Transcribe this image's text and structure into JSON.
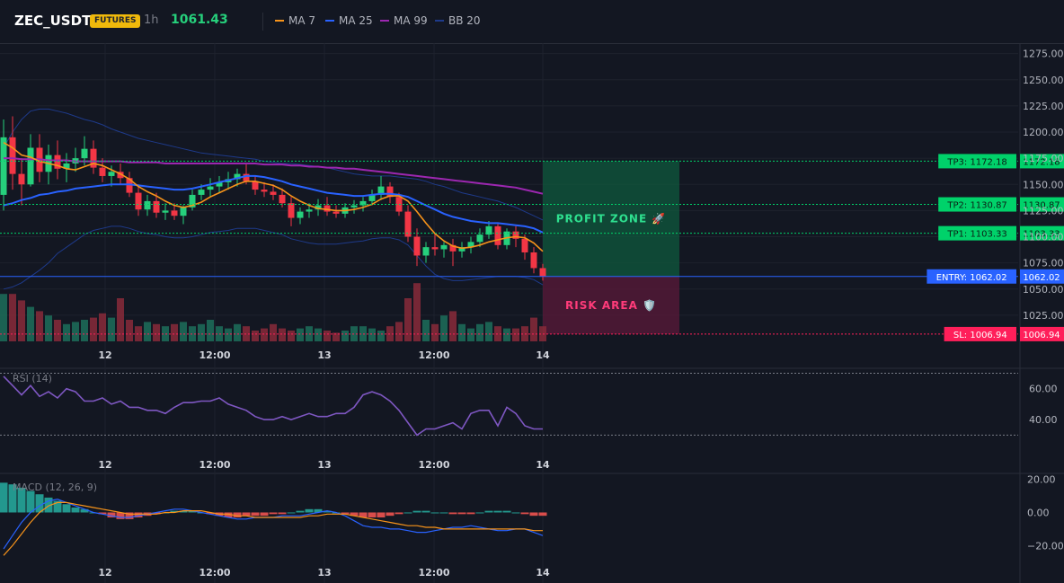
{
  "header": {
    "symbol": "ZEC_USDT",
    "badge": "FUTURES",
    "timeframe": "1h",
    "price": "1061.43"
  },
  "legend": [
    {
      "label": "MA 7",
      "color": "#f7931a"
    },
    {
      "label": "MA 25",
      "color": "#2962ff"
    },
    {
      "label": "MA 99",
      "color": "#9c27b0"
    },
    {
      "label": "BB 20",
      "color": "#1e3a8a"
    }
  ],
  "colors": {
    "up": "#26d07c",
    "down": "#f23645",
    "tp": "#00d26a",
    "sl": "#ff1f5a",
    "entry": "#2962ff",
    "rsi": "#7e57c2",
    "macd": "#2962ff",
    "signal": "#f7931a"
  },
  "main_axis": {
    "ticks": [
      "1275.00",
      "1250.00",
      "1225.00",
      "1200.00",
      "1175.00",
      "1150.00",
      "1125.00",
      "1100.00",
      "1075.00",
      "1050.00",
      "1025.00"
    ],
    "values": [
      1275,
      1250,
      1225,
      1200,
      1175,
      1150,
      1125,
      1100,
      1075,
      1050,
      1025
    ]
  },
  "x_ticks": [
    "12",
    "12:00",
    "13",
    "12:00",
    "14"
  ],
  "levels": {
    "tp3": {
      "label": "TP3: 1172.18",
      "axis": "1172.18",
      "value": 1172.18
    },
    "tp2": {
      "label": "TP2: 1130.87",
      "axis": "1130.87",
      "value": 1130.87
    },
    "tp1": {
      "label": "TP1: 1103.33",
      "axis": "1103.33",
      "value": 1103.33
    },
    "entry": {
      "label": "ENTRY: 1062.02",
      "axis": "1062.02",
      "value": 1062.02
    },
    "sl": {
      "label": "SL: 1006.94",
      "axis": "1006.94",
      "value": 1006.94
    }
  },
  "zones": {
    "profit": "PROFIT ZONE 🚀",
    "risk": "RISK AREA 🛡️"
  },
  "rsi": {
    "title": "RSI (14)",
    "ticks": [
      "60.00",
      "40.00"
    ],
    "tick_values": [
      60,
      40
    ],
    "overbought": 70,
    "oversold": 30
  },
  "macd": {
    "title": "MACD (12, 26, 9)",
    "ticks": [
      "20.00",
      "0.00",
      "−20.00"
    ],
    "tick_values": [
      20,
      0,
      -20
    ]
  },
  "chart_data": {
    "type": "candlestick",
    "ylim": [
      1000,
      1285
    ],
    "candles": [
      [
        1140,
        1212,
        1125,
        1195
      ],
      [
        1195,
        1215,
        1145,
        1160
      ],
      [
        1160,
        1175,
        1130,
        1150
      ],
      [
        1150,
        1198,
        1148,
        1185
      ],
      [
        1185,
        1198,
        1152,
        1162
      ],
      [
        1162,
        1188,
        1150,
        1178
      ],
      [
        1178,
        1192,
        1155,
        1165
      ],
      [
        1165,
        1180,
        1152,
        1170
      ],
      [
        1170,
        1185,
        1162,
        1175
      ],
      [
        1175,
        1196,
        1168,
        1184
      ],
      [
        1184,
        1192,
        1160,
        1166
      ],
      [
        1166,
        1175,
        1152,
        1158
      ],
      [
        1158,
        1168,
        1148,
        1162
      ],
      [
        1162,
        1170,
        1150,
        1156
      ],
      [
        1156,
        1162,
        1138,
        1142
      ],
      [
        1142,
        1150,
        1120,
        1126
      ],
      [
        1126,
        1140,
        1120,
        1134
      ],
      [
        1134,
        1142,
        1118,
        1123
      ],
      [
        1123,
        1132,
        1116,
        1125
      ],
      [
        1125,
        1132,
        1116,
        1120
      ],
      [
        1120,
        1130,
        1112,
        1128
      ],
      [
        1128,
        1145,
        1125,
        1140
      ],
      [
        1140,
        1150,
        1135,
        1145
      ],
      [
        1145,
        1156,
        1138,
        1148
      ],
      [
        1148,
        1158,
        1142,
        1152
      ],
      [
        1152,
        1162,
        1145,
        1155
      ],
      [
        1155,
        1165,
        1148,
        1160
      ],
      [
        1160,
        1170,
        1150,
        1153
      ],
      [
        1153,
        1158,
        1140,
        1145
      ],
      [
        1145,
        1152,
        1138,
        1143
      ],
      [
        1143,
        1150,
        1135,
        1140
      ],
      [
        1140,
        1146,
        1128,
        1132
      ],
      [
        1132,
        1138,
        1110,
        1118
      ],
      [
        1118,
        1128,
        1112,
        1124
      ],
      [
        1124,
        1132,
        1118,
        1126
      ],
      [
        1126,
        1136,
        1120,
        1130
      ],
      [
        1130,
        1138,
        1120,
        1124
      ],
      [
        1124,
        1130,
        1118,
        1122
      ],
      [
        1122,
        1132,
        1118,
        1128
      ],
      [
        1128,
        1135,
        1122,
        1130
      ],
      [
        1130,
        1138,
        1124,
        1134
      ],
      [
        1134,
        1145,
        1130,
        1140
      ],
      [
        1140,
        1158,
        1135,
        1148
      ],
      [
        1148,
        1152,
        1132,
        1138
      ],
      [
        1138,
        1142,
        1120,
        1124
      ],
      [
        1124,
        1130,
        1095,
        1100
      ],
      [
        1100,
        1108,
        1072,
        1082
      ],
      [
        1082,
        1095,
        1075,
        1090
      ],
      [
        1090,
        1102,
        1082,
        1088
      ],
      [
        1088,
        1095,
        1080,
        1092
      ],
      [
        1092,
        1098,
        1072,
        1086
      ],
      [
        1086,
        1095,
        1080,
        1090
      ],
      [
        1090,
        1100,
        1084,
        1095
      ],
      [
        1095,
        1108,
        1090,
        1102
      ],
      [
        1102,
        1115,
        1098,
        1110
      ],
      [
        1110,
        1112,
        1088,
        1092
      ],
      [
        1092,
        1108,
        1088,
        1105
      ],
      [
        1105,
        1110,
        1090,
        1098
      ],
      [
        1098,
        1102,
        1078,
        1085
      ],
      [
        1085,
        1090,
        1065,
        1070
      ],
      [
        1070,
        1074,
        1058,
        1062
      ]
    ],
    "volume": [
      44,
      44,
      38,
      32,
      28,
      24,
      20,
      16,
      18,
      20,
      22,
      26,
      22,
      40,
      20,
      14,
      18,
      16,
      14,
      16,
      18,
      14,
      16,
      20,
      14,
      12,
      16,
      14,
      10,
      12,
      16,
      12,
      10,
      12,
      14,
      12,
      10,
      8,
      10,
      14,
      14,
      12,
      10,
      14,
      18,
      40,
      54,
      20,
      16,
      24,
      28,
      16,
      12,
      16,
      18,
      14,
      12,
      12,
      14,
      22,
      14
    ],
    "ma7": [
      1190,
      1185,
      1178,
      1176,
      1172,
      1170,
      1168,
      1165,
      1164,
      1167,
      1170,
      1168,
      1164,
      1160,
      1155,
      1148,
      1143,
      1139,
      1134,
      1130,
      1128,
      1130,
      1133,
      1138,
      1142,
      1146,
      1150,
      1153,
      1153,
      1151,
      1149,
      1145,
      1139,
      1134,
      1130,
      1127,
      1126,
      1125,
      1125,
      1126,
      1128,
      1131,
      1136,
      1139,
      1139,
      1134,
      1124,
      1113,
      1103,
      1096,
      1091,
      1089,
      1090,
      1092,
      1095,
      1097,
      1099,
      1100,
      1099,
      1094,
      1086
    ],
    "ma25": [
      1130,
      1132,
      1135,
      1137,
      1140,
      1141,
      1143,
      1144,
      1146,
      1147,
      1148,
      1149,
      1150,
      1150,
      1150,
      1149,
      1148,
      1147,
      1146,
      1145,
      1145,
      1146,
      1148,
      1150,
      1152,
      1154,
      1156,
      1158,
      1158,
      1157,
      1155,
      1153,
      1150,
      1148,
      1146,
      1144,
      1142,
      1141,
      1140,
      1139,
      1139,
      1140,
      1141,
      1141,
      1140,
      1138,
      1134,
      1130,
      1126,
      1122,
      1119,
      1117,
      1115,
      1114,
      1113,
      1113,
      1112,
      1111,
      1110,
      1108,
      1104
    ],
    "ma99": [
      1175,
      1175,
      1174,
      1174,
      1174,
      1173,
      1173,
      1173,
      1172,
      1172,
      1172,
      1172,
      1172,
      1172,
      1171,
      1171,
      1171,
      1171,
      1170,
      1170,
      1170,
      1170,
      1170,
      1170,
      1170,
      1170,
      1170,
      1170,
      1170,
      1169,
      1169,
      1169,
      1168,
      1168,
      1167,
      1167,
      1166,
      1166,
      1165,
      1165,
      1164,
      1163,
      1162,
      1161,
      1160,
      1159,
      1158,
      1157,
      1156,
      1155,
      1154,
      1153,
      1152,
      1151,
      1150,
      1149,
      1148,
      1147,
      1145,
      1143,
      1141
    ],
    "bb_upper": [
      1185,
      1200,
      1212,
      1220,
      1222,
      1222,
      1220,
      1218,
      1215,
      1212,
      1210,
      1207,
      1203,
      1200,
      1197,
      1194,
      1192,
      1190,
      1188,
      1186,
      1184,
      1182,
      1180,
      1179,
      1178,
      1177,
      1176,
      1175,
      1174,
      1172,
      1171,
      1170,
      1170,
      1169,
      1168,
      1167,
      1166,
      1164,
      1162,
      1160,
      1159,
      1158,
      1158,
      1158,
      1157,
      1156,
      1155,
      1153,
      1150,
      1148,
      1145,
      1142,
      1140,
      1138,
      1136,
      1134,
      1131,
      1128,
      1124,
      1120,
      1116
    ],
    "bb_lower": [
      1050,
      1052,
      1056,
      1062,
      1068,
      1075,
      1084,
      1090,
      1096,
      1102,
      1106,
      1108,
      1110,
      1110,
      1108,
      1105,
      1103,
      1102,
      1100,
      1099,
      1099,
      1100,
      1102,
      1104,
      1105,
      1106,
      1108,
      1108,
      1108,
      1106,
      1104,
      1102,
      1098,
      1096,
      1094,
      1093,
      1093,
      1093,
      1094,
      1095,
      1096,
      1098,
      1099,
      1099,
      1097,
      1092,
      1082,
      1072,
      1064,
      1060,
      1058,
      1058,
      1059,
      1060,
      1061,
      1062,
      1062,
      1062,
      1061,
      1059,
      1054
    ],
    "rsi_values": [
      68,
      62,
      56,
      62,
      55,
      58,
      54,
      60,
      58,
      52,
      52,
      54,
      50,
      52,
      48,
      48,
      46,
      46,
      44,
      48,
      51,
      51,
      52,
      52,
      54,
      50,
      48,
      46,
      42,
      40,
      40,
      42,
      40,
      42,
      44,
      42,
      42,
      44,
      44,
      48,
      56,
      58,
      56,
      52,
      46,
      38,
      30,
      34,
      34,
      36,
      38,
      34,
      44,
      46,
      46,
      36,
      48,
      44,
      36,
      34,
      34
    ],
    "macd_hist": [
      18,
      17,
      15,
      13,
      11,
      9,
      7,
      5,
      3,
      2,
      0,
      -1,
      -3,
      -4,
      -4,
      -3,
      -2,
      -1,
      0,
      1,
      1,
      1,
      0,
      -1,
      -2,
      -3,
      -3,
      -2,
      -2,
      -2,
      -1,
      -1,
      0,
      1,
      2,
      2,
      1,
      0,
      -1,
      -2,
      -3,
      -3,
      -3,
      -2,
      -1,
      0,
      1,
      1,
      0,
      0,
      -1,
      -1,
      -1,
      0,
      1,
      1,
      1,
      0,
      -1,
      -2,
      -2
    ],
    "macd_line": [
      -22,
      -14,
      -6,
      0,
      4,
      7,
      8,
      6,
      4,
      2,
      0,
      -1,
      -2,
      -3,
      -3,
      -2,
      -1,
      0,
      1,
      2,
      2,
      1,
      0,
      -1,
      -2,
      -3,
      -4,
      -4,
      -3,
      -3,
      -3,
      -2,
      -2,
      -2,
      -1,
      0,
      1,
      0,
      -2,
      -5,
      -8,
      -9,
      -9,
      -10,
      -10,
      -11,
      -12,
      -12,
      -11,
      -10,
      -9,
      -9,
      -8,
      -9,
      -10,
      -11,
      -11,
      -10,
      -10,
      -12,
      -14
    ],
    "macd_signal": [
      -26,
      -20,
      -13,
      -6,
      0,
      4,
      6,
      6,
      5,
      4,
      3,
      2,
      1,
      0,
      -1,
      -1,
      -1,
      -1,
      0,
      0,
      1,
      1,
      1,
      0,
      -1,
      -1,
      -2,
      -2,
      -3,
      -3,
      -3,
      -3,
      -3,
      -3,
      -2,
      -2,
      -1,
      -1,
      -1,
      -2,
      -3,
      -4,
      -5,
      -6,
      -7,
      -8,
      -8,
      -9,
      -9,
      -10,
      -10,
      -10,
      -10,
      -10,
      -10,
      -10,
      -10,
      -10,
      -10,
      -11,
      -11
    ]
  }
}
